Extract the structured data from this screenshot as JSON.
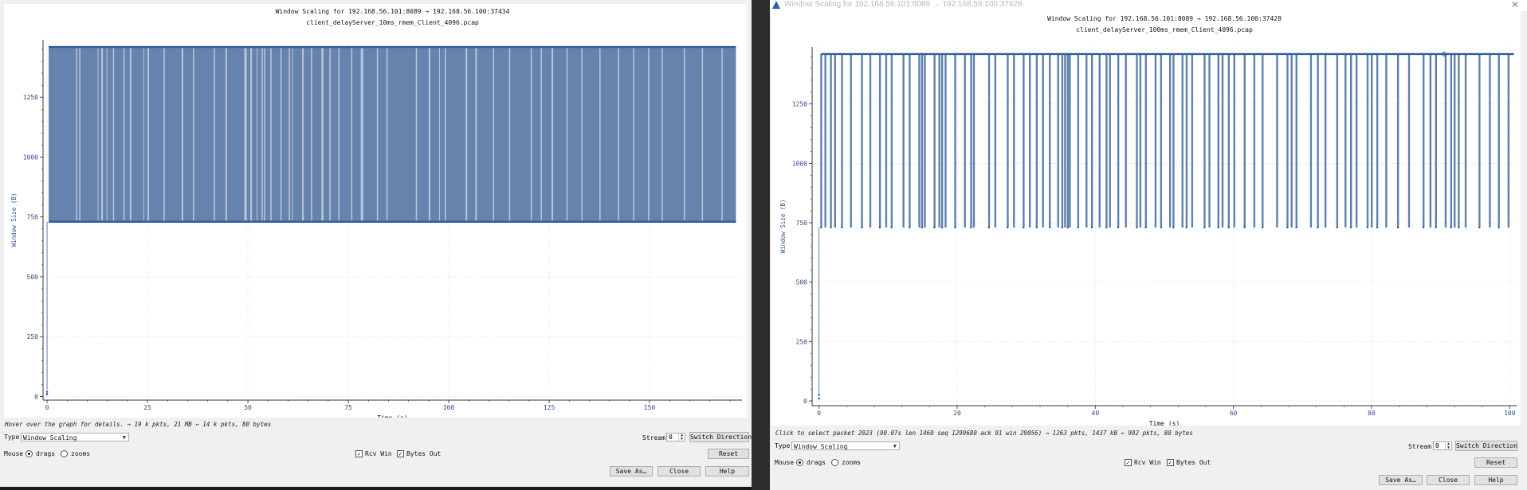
{
  "windows": [
    {
      "id": "left",
      "window_title": "",
      "chart_data": {
        "type": "line",
        "title": "Window Scaling for 192.168.56.101:8089 → 192.168.56.100:37434",
        "subtitle": "client_delayServer_10ms_rmem_Client_4096.pcap",
        "xlabel": "Time (s)",
        "ylabel": "Window Size (B)",
        "xlim": [
          -1,
          173
        ],
        "ylim": [
          -15,
          1490
        ],
        "xticks": [
          0,
          25,
          50,
          75,
          100,
          125,
          150
        ],
        "yticks": [
          0,
          250,
          500,
          750,
          1000,
          1250
        ],
        "grid": true,
        "series": [
          {
            "color": "#2e5d9a",
            "x_start": 0.4,
            "x_end": 171.5,
            "y_low": 730,
            "y_high": 1460,
            "start_points": [
              [
                0,
                10
              ],
              [
                0,
                20
              ]
            ],
            "gaps": [
              [
                7.2,
                7.5
              ],
              [
                8.0,
                8.3
              ],
              [
                12.6,
                12.8
              ],
              [
                13.5,
                13.9
              ],
              [
                14.8,
                15.0
              ],
              [
                16.4,
                16.7
              ],
              [
                19.0,
                19.3
              ],
              [
                20.6,
                21.0
              ],
              [
                24.0,
                24.2
              ],
              [
                25.0,
                25.4
              ],
              [
                29.0,
                29.3
              ],
              [
                33.5,
                33.9
              ],
              [
                36.3,
                36.6
              ],
              [
                41.5,
                41.8
              ],
              [
                44.4,
                44.8
              ],
              [
                49.1,
                49.7
              ],
              [
                50.6,
                51.0
              ],
              [
                52.2,
                52.4
              ],
              [
                53.4,
                53.7
              ],
              [
                54.0,
                54.3
              ],
              [
                55.6,
                55.9
              ],
              [
                58.1,
                58.4
              ],
              [
                60.2,
                60.5
              ],
              [
                61.0,
                61.2
              ],
              [
                63.5,
                63.9
              ],
              [
                65.7,
                66.0
              ],
              [
                68.3,
                68.8
              ],
              [
                70.3,
                70.6
              ],
              [
                72.5,
                72.8
              ],
              [
                75.7,
                76.0
              ],
              [
                78.1,
                78.7
              ],
              [
                82.1,
                82.4
              ],
              [
                84.5,
                84.8
              ],
              [
                91.8,
                92.1
              ],
              [
                95.0,
                95.4
              ],
              [
                97.6,
                97.8
              ],
              [
                99.0,
                99.3
              ],
              [
                104.2,
                104.6
              ],
              [
                106.6,
                107.0
              ],
              [
                111.0,
                111.3
              ],
              [
                115.0,
                115.3
              ],
              [
                120.4,
                120.7
              ],
              [
                122.9,
                123.2
              ],
              [
                125.6,
                126.0
              ],
              [
                129.3,
                129.6
              ],
              [
                133.0,
                133.3
              ],
              [
                137.5,
                137.8
              ],
              [
                142.1,
                142.4
              ],
              [
                145.9,
                146.2
              ],
              [
                149.6,
                149.9
              ],
              [
                153.0,
                153.3
              ],
              [
                158.5,
                158.8
              ],
              [
                163.0,
                163.3
              ],
              [
                167.9,
                168.2
              ]
            ]
          }
        ]
      },
      "hint": "Hover over the graph for details. → 19 k pkts, 21 MB ← 14 k pkts, 80 bytes",
      "controls": {
        "type_label": "Type",
        "type_value": "Window Scaling",
        "stream_label": "Stream",
        "stream_value": "0",
        "switch_direction": "Switch Direction",
        "mouse_label": "Mouse",
        "drags_label": "drags",
        "zooms_label": "zooms",
        "rcv_win_label": "Rcv Win",
        "bytes_out_label": "Bytes Out",
        "reset": "Reset",
        "save_as": "Save As…",
        "close": "Close",
        "help": "Help"
      }
    },
    {
      "id": "right",
      "window_title": "Window Scaling for 192.168.56.101:8089 → 192.168.56.100:37428",
      "chart_data": {
        "type": "line",
        "title": "Window Scaling for 192.168.56.101:8089 → 192.168.56.100:37428",
        "subtitle": "client_delayServer_100ms_rmem_Client_4096.pcap",
        "xlabel": "Time (s)",
        "ylabel": "Window Size (B)",
        "xlim": [
          -1,
          101
        ],
        "ylim": [
          -20,
          1490
        ],
        "xticks": [
          0,
          20,
          40,
          60,
          80,
          100
        ],
        "yticks": [
          0,
          250,
          500,
          750,
          1000,
          1250
        ],
        "grid": true,
        "series": [
          {
            "color": "#2e5d9a",
            "x_start": 0.3,
            "x_end": 100.6,
            "y_low": 730,
            "y_high": 1460,
            "start_points": [
              [
                0,
                10
              ],
              [
                0,
                25
              ]
            ],
            "dips": [
              0.3,
              0.9,
              1.7,
              2.3,
              3.3,
              4.6,
              6.2,
              7.4,
              8.8,
              9.7,
              10.5,
              12.2,
              13.1,
              14.5,
              14.9,
              15.3,
              16.7,
              17.4,
              17.8,
              18.3,
              19.7,
              21.1,
              22.0,
              22.4,
              24.6,
              25.5,
              27.3,
              28.2,
              29.6,
              30.5,
              31.5,
              32.4,
              33.4,
              34.6,
              35.2,
              35.6,
              36.0,
              36.3,
              37.5,
              38.7,
              39.5,
              40.6,
              41.6,
              42.1,
              43.3,
              44.4,
              46.0,
              46.5,
              47.3,
              48.7,
              49.5,
              50.8,
              51.3,
              52.6,
              53.2,
              54.0,
              55.8,
              56.5,
              57.8,
              58.4,
              59.3,
              60.1,
              61.6,
              63.0,
              64.2,
              66.3,
              67.8,
              68.4,
              69.1,
              71.2,
              72.2,
              73.3,
              75.0,
              76.2,
              77.0,
              77.8,
              79.4,
              80.0,
              80.8,
              82.1,
              83.8,
              85.4,
              87.5,
              88.5,
              89.3,
              90.7,
              91.5,
              92.0,
              92.6,
              93.6,
              95.6,
              97.1,
              98.4,
              99.8
            ],
            "marker": [
              90.5,
              1460
            ]
          }
        ]
      },
      "hint": "Click to select packet 2023 (90.07s len 1460 seq 1299680 ack 91 win 29056) → 1263 pkts, 1437 kB ← 992 pkts, 80 bytes",
      "controls": {
        "type_label": "Type",
        "type_value": "Window Scaling",
        "stream_label": "Stream",
        "stream_value": "0",
        "switch_direction": "Switch Direction",
        "mouse_label": "Mouse",
        "drags_label": "drags",
        "zooms_label": "zooms",
        "rcv_win_label": "Rcv Win",
        "bytes_out_label": "Bytes Out",
        "reset": "Reset",
        "save_as": "Save As…",
        "close": "Close",
        "help": "Help"
      }
    }
  ]
}
